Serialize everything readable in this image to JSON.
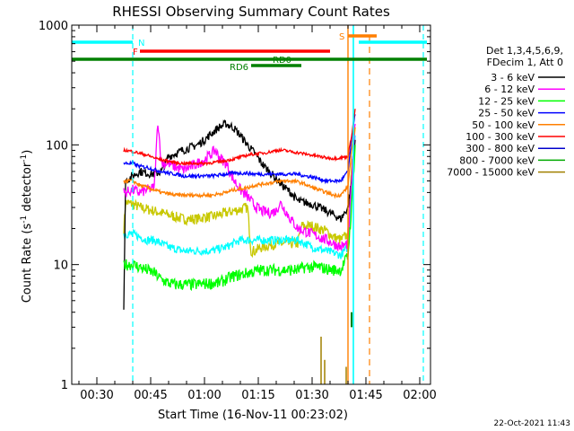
{
  "chart_data": {
    "type": "line",
    "title": "RHESSI Observing Summary Count Rates",
    "xlabel": "Start Time (16-Nov-11 00:23:02)",
    "ylabel_main": "Count Rate (s",
    "ylabel_sup": "-1",
    "ylabel_tail": " detector",
    "ylabel_sup2": "-1",
    "ylabel_end": ")",
    "yscale": "log",
    "xlim_minutes": [
      23,
      123
    ],
    "ylim": [
      1,
      1000
    ],
    "x_tick_labels": [
      {
        "t": 30,
        "label": "00:30"
      },
      {
        "t": 45,
        "label": "00:45"
      },
      {
        "t": 60,
        "label": "01:00"
      },
      {
        "t": 75,
        "label": "01:15"
      },
      {
        "t": 90,
        "label": "01:30"
      },
      {
        "t": 105,
        "label": "01:45"
      },
      {
        "t": 120,
        "label": "02:00"
      }
    ],
    "y_tick_labels": [
      {
        "v": 1,
        "label": "1"
      },
      {
        "v": 10,
        "label": "10"
      },
      {
        "v": 100,
        "label": "100"
      },
      {
        "v": 1000,
        "label": "1000"
      }
    ],
    "legend_header": [
      "Det 1,3,4,5,6,9,",
      "FDecim 1, Att 0"
    ],
    "series": [
      {
        "name": "3 - 6 keV",
        "color": "#000000",
        "points": [
          [
            37.5,
            4
          ],
          [
            38,
            50
          ],
          [
            40,
            55
          ],
          [
            42,
            60
          ],
          [
            44,
            58
          ],
          [
            46,
            57
          ],
          [
            48,
            60
          ],
          [
            50,
            80
          ],
          [
            52,
            85
          ],
          [
            54,
            90
          ],
          [
            56,
            95
          ],
          [
            58,
            100
          ],
          [
            60,
            110
          ],
          [
            62,
            125
          ],
          [
            64,
            140
          ],
          [
            66,
            150
          ],
          [
            68,
            140
          ],
          [
            70,
            120
          ],
          [
            72,
            100
          ],
          [
            74,
            85
          ],
          [
            76,
            70
          ],
          [
            78,
            60
          ],
          [
            80,
            52
          ],
          [
            82,
            45
          ],
          [
            84,
            40
          ],
          [
            86,
            34
          ],
          [
            88,
            33
          ],
          [
            90,
            32
          ],
          [
            92,
            30
          ],
          [
            94,
            28
          ],
          [
            96,
            26
          ],
          [
            98,
            24
          ],
          [
            100,
            30
          ],
          [
            101,
            50
          ],
          [
            102,
            110
          ]
        ]
      },
      {
        "name": "6 - 12 keV",
        "color": "#ff00ff",
        "points": [
          [
            37.5,
            40
          ],
          [
            38,
            40
          ],
          [
            40,
            42
          ],
          [
            42,
            40
          ],
          [
            44,
            42
          ],
          [
            46,
            44
          ],
          [
            47,
            160
          ],
          [
            48,
            70
          ],
          [
            50,
            70
          ],
          [
            52,
            65
          ],
          [
            54,
            62
          ],
          [
            56,
            65
          ],
          [
            58,
            70
          ],
          [
            60,
            75
          ],
          [
            62,
            85
          ],
          [
            63,
            90
          ],
          [
            64,
            80
          ],
          [
            66,
            70
          ],
          [
            68,
            52
          ],
          [
            70,
            42
          ],
          [
            72,
            37
          ],
          [
            74,
            31
          ],
          [
            76,
            28
          ],
          [
            78,
            27
          ],
          [
            80,
            28
          ],
          [
            81,
            33
          ],
          [
            82,
            30
          ],
          [
            84,
            24
          ],
          [
            86,
            20
          ],
          [
            88,
            19
          ],
          [
            90,
            18
          ],
          [
            92,
            17
          ],
          [
            94,
            16
          ],
          [
            96,
            15
          ],
          [
            98,
            14
          ],
          [
            100,
            15
          ],
          [
            101,
            50
          ],
          [
            102,
            150
          ]
        ]
      },
      {
        "name": "12 - 25 keV",
        "color": "#00ff00",
        "points": [
          [
            37.5,
            10
          ],
          [
            38,
            10
          ],
          [
            40,
            10
          ],
          [
            42,
            9.5
          ],
          [
            44,
            9
          ],
          [
            46,
            8.5
          ],
          [
            48,
            7.5
          ],
          [
            50,
            7
          ],
          [
            52,
            6.8
          ],
          [
            54,
            6.8
          ],
          [
            56,
            6.8
          ],
          [
            58,
            6.8
          ],
          [
            60,
            6.9
          ],
          [
            62,
            7
          ],
          [
            64,
            7
          ],
          [
            66,
            7.5
          ],
          [
            68,
            8
          ],
          [
            70,
            8.2
          ],
          [
            72,
            8.5
          ],
          [
            74,
            8.8
          ],
          [
            76,
            9
          ],
          [
            78,
            9
          ],
          [
            80,
            9
          ],
          [
            82,
            9
          ],
          [
            84,
            9
          ],
          [
            86,
            9
          ],
          [
            88,
            9.5
          ],
          [
            90,
            9.5
          ],
          [
            92,
            9.5
          ],
          [
            94,
            9.2
          ],
          [
            96,
            9
          ],
          [
            98,
            9
          ],
          [
            100,
            12
          ],
          [
            101,
            30
          ],
          [
            102,
            100
          ]
        ]
      },
      {
        "name": "25 - 50 keV",
        "color": "#0000ff",
        "points": [
          [
            37.5,
            70
          ],
          [
            38,
            70
          ],
          [
            40,
            70
          ],
          [
            42,
            66
          ],
          [
            44,
            65
          ],
          [
            46,
            62
          ],
          [
            48,
            60
          ],
          [
            50,
            58
          ],
          [
            52,
            57
          ],
          [
            54,
            55
          ],
          [
            56,
            55
          ],
          [
            58,
            55
          ],
          [
            60,
            55
          ],
          [
            62,
            55
          ],
          [
            64,
            56
          ],
          [
            66,
            57
          ],
          [
            68,
            58
          ],
          [
            70,
            58
          ],
          [
            72,
            58
          ],
          [
            74,
            57
          ],
          [
            76,
            57
          ],
          [
            78,
            57
          ],
          [
            80,
            57
          ],
          [
            82,
            57
          ],
          [
            84,
            57
          ],
          [
            86,
            57
          ],
          [
            88,
            55
          ],
          [
            90,
            54
          ],
          [
            92,
            52
          ],
          [
            94,
            50
          ],
          [
            96,
            50
          ],
          [
            98,
            50
          ],
          [
            100,
            60
          ],
          [
            101,
            110
          ],
          [
            102,
            180
          ]
        ]
      },
      {
        "name": "50 - 100 keV",
        "color": "#ff7f00",
        "points": [
          [
            37.5,
            50
          ],
          [
            38,
            50
          ],
          [
            40,
            50
          ],
          [
            42,
            46
          ],
          [
            44,
            44
          ],
          [
            46,
            42
          ],
          [
            48,
            40
          ],
          [
            50,
            39
          ],
          [
            52,
            38
          ],
          [
            54,
            38
          ],
          [
            56,
            38
          ],
          [
            58,
            38
          ],
          [
            60,
            38
          ],
          [
            62,
            38
          ],
          [
            64,
            39
          ],
          [
            66,
            40
          ],
          [
            68,
            42
          ],
          [
            70,
            43
          ],
          [
            72,
            44
          ],
          [
            74,
            46
          ],
          [
            76,
            47
          ],
          [
            78,
            48
          ],
          [
            80,
            49
          ],
          [
            82,
            50
          ],
          [
            84,
            50
          ],
          [
            86,
            49
          ],
          [
            88,
            47
          ],
          [
            90,
            44
          ],
          [
            92,
            42
          ],
          [
            94,
            40
          ],
          [
            96,
            38
          ],
          [
            98,
            38
          ],
          [
            100,
            45
          ],
          [
            101,
            90
          ],
          [
            102,
            140
          ]
        ]
      },
      {
        "name": "100 - 300 keV",
        "color": "#ff0000",
        "points": [
          [
            37.5,
            90
          ],
          [
            38,
            90
          ],
          [
            40,
            88
          ],
          [
            42,
            85
          ],
          [
            44,
            82
          ],
          [
            46,
            78
          ],
          [
            48,
            75
          ],
          [
            50,
            73
          ],
          [
            52,
            71
          ],
          [
            54,
            70
          ],
          [
            56,
            70
          ],
          [
            58,
            70
          ],
          [
            60,
            70
          ],
          [
            62,
            71
          ],
          [
            64,
            72
          ],
          [
            66,
            74
          ],
          [
            68,
            76
          ],
          [
            70,
            79
          ],
          [
            72,
            82
          ],
          [
            74,
            84
          ],
          [
            76,
            85
          ],
          [
            78,
            87
          ],
          [
            80,
            90
          ],
          [
            82,
            90
          ],
          [
            84,
            88
          ],
          [
            86,
            86
          ],
          [
            88,
            84
          ],
          [
            90,
            82
          ],
          [
            92,
            80
          ],
          [
            94,
            78
          ],
          [
            96,
            77
          ],
          [
            98,
            78
          ],
          [
            100,
            80
          ],
          [
            101,
            120
          ],
          [
            102,
            200
          ]
        ]
      },
      {
        "name": "300 - 800 keV",
        "color": "#0000cc",
        "points": []
      },
      {
        "name": "800 - 7000 keV",
        "color": "#00aa00",
        "points": []
      },
      {
        "name": "7000 - 15000 keV",
        "color": "#a08000",
        "points": []
      }
    ],
    "yellow_series": {
      "color": "#c8c800",
      "points": [
        [
          37.5,
          20
        ],
        [
          38,
          33
        ],
        [
          40,
          32
        ],
        [
          42,
          30
        ],
        [
          44,
          29
        ],
        [
          46,
          28
        ],
        [
          48,
          27
        ],
        [
          50,
          26
        ],
        [
          52,
          25
        ],
        [
          54,
          24
        ],
        [
          56,
          24
        ],
        [
          58,
          24
        ],
        [
          60,
          25
        ],
        [
          62,
          25
        ],
        [
          64,
          26
        ],
        [
          66,
          27
        ],
        [
          68,
          28
        ],
        [
          70,
          29
        ],
        [
          72,
          30
        ],
        [
          73,
          13
        ],
        [
          74,
          13
        ],
        [
          76,
          14
        ],
        [
          78,
          14.5
        ],
        [
          80,
          15
        ],
        [
          82,
          15
        ],
        [
          84,
          15
        ],
        [
          86,
          15
        ],
        [
          87,
          21
        ],
        [
          88,
          21
        ],
        [
          90,
          21
        ],
        [
          92,
          20
        ],
        [
          94,
          19
        ],
        [
          96,
          17
        ],
        [
          98,
          16
        ],
        [
          100,
          18
        ],
        [
          101,
          60
        ],
        [
          102,
          140
        ]
      ]
    },
    "cyan_series": {
      "color": "#00ffff",
      "points": [
        [
          37.5,
          18
        ],
        [
          38,
          18
        ],
        [
          40,
          18
        ],
        [
          42,
          17
        ],
        [
          44,
          16
        ],
        [
          46,
          16
        ],
        [
          48,
          15
        ],
        [
          50,
          14
        ],
        [
          52,
          13.5
        ],
        [
          54,
          13
        ],
        [
          56,
          13
        ],
        [
          58,
          13
        ],
        [
          60,
          13
        ],
        [
          62,
          13
        ],
        [
          64,
          13.5
        ],
        [
          66,
          14
        ],
        [
          68,
          15
        ],
        [
          70,
          16
        ],
        [
          72,
          16
        ],
        [
          74,
          16
        ],
        [
          76,
          16
        ],
        [
          78,
          16
        ],
        [
          80,
          16
        ],
        [
          82,
          16
        ],
        [
          84,
          16
        ],
        [
          86,
          16
        ],
        [
          88,
          15
        ],
        [
          90,
          14
        ],
        [
          92,
          13.5
        ],
        [
          94,
          13
        ],
        [
          96,
          12.5
        ],
        [
          98,
          12
        ],
        [
          100,
          14
        ],
        [
          101,
          40
        ],
        [
          102,
          120
        ]
      ]
    },
    "flag_bars": [
      {
        "label": "N",
        "color": "#00ffff",
        "x1": 23,
        "x2": 40,
        "y": 47
      },
      {
        "label": "N",
        "color": "#00ffff",
        "x1": 103,
        "x2": 122,
        "y": 47
      },
      {
        "label": "F",
        "color": "#ff0000",
        "x1": 42,
        "x2": 95,
        "y": 57
      },
      {
        "label": "RD0",
        "color": "#008000",
        "x1": 23,
        "x2": 122,
        "y": 66
      },
      {
        "label": "RD6",
        "color": "#008000",
        "x1": 73,
        "x2": 87,
        "y": 73
      },
      {
        "label": "S",
        "color": "#ff7f00",
        "x1": 100,
        "x2": 108,
        "y": 40
      }
    ],
    "flag_labels": {
      "N": "N",
      "F": "F",
      "RD0": "RD0",
      "RD6": "RD6",
      "S": "S"
    },
    "vlines_cyan_dashed": [
      40,
      121
    ],
    "vline_cyan_solid": 101.5,
    "vline_orange_dashed": 106,
    "vline_orange_solid": 100,
    "footer_date": "22-Oct-2021 11:43"
  }
}
